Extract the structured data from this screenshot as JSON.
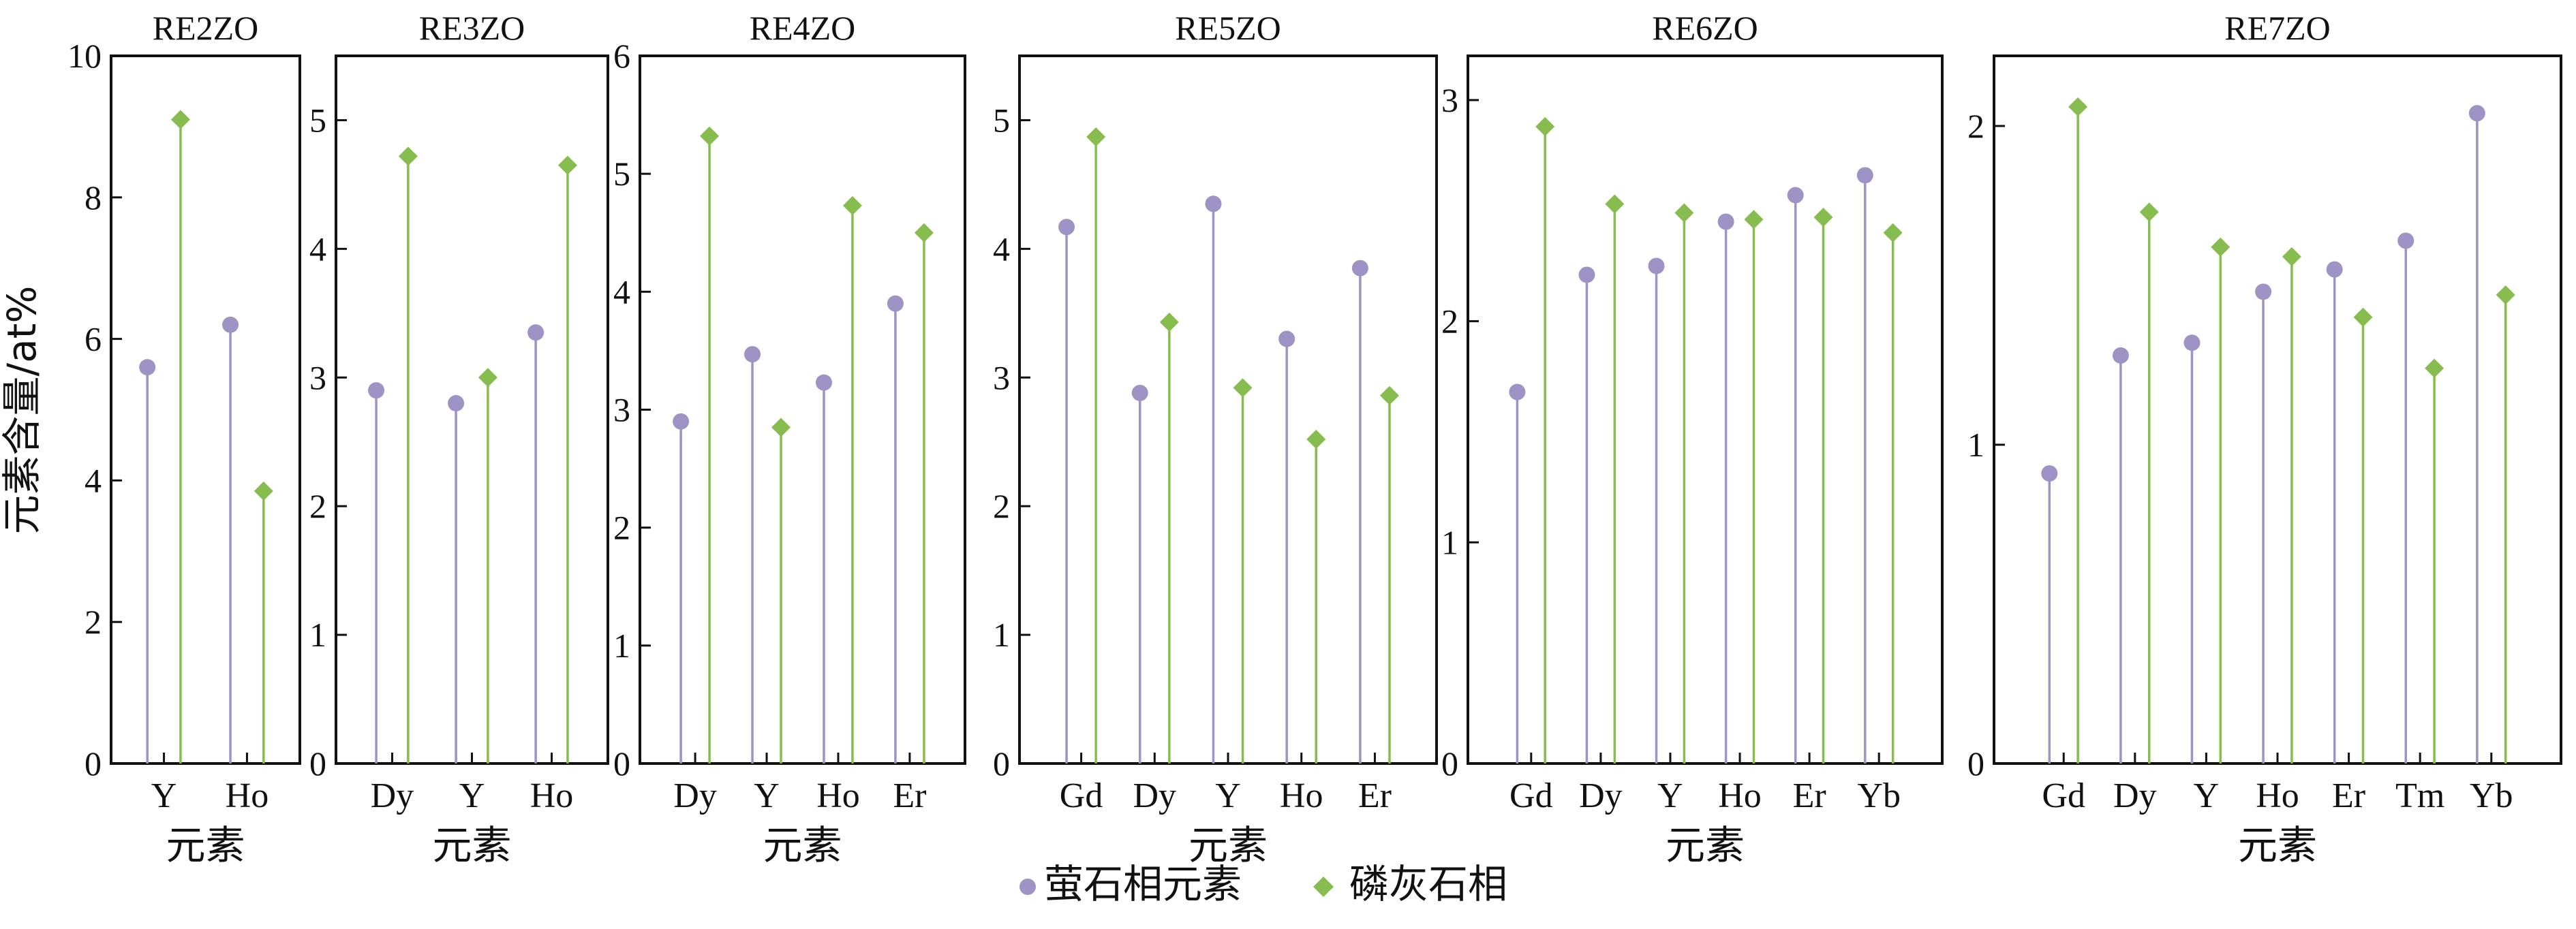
{
  "shared": {
    "ylabel": "元素含量/at%",
    "xlabel": "元素",
    "colors": {
      "fluorite": "#9d93c4",
      "apatite": "#86bd4e",
      "axis": "#111111"
    },
    "legend": [
      {
        "name": "萤石相元素",
        "key": "fluorite",
        "marker": "circle"
      },
      {
        "name": "磷灰石相",
        "key": "apatite",
        "marker": "diamond"
      }
    ]
  },
  "chart_data": [
    {
      "type": "stem",
      "title": "RE2ZO",
      "xlabel": "元素",
      "ylabel": "元素含量/at%",
      "categories": [
        "Y",
        "Ho"
      ],
      "ylim": [
        0,
        10
      ],
      "yticks": [
        0,
        2,
        4,
        6,
        8,
        10
      ],
      "series": [
        {
          "name": "萤石相元素",
          "values": [
            5.6,
            6.2
          ]
        },
        {
          "name": "磷灰石相",
          "values": [
            9.1,
            3.85
          ]
        }
      ]
    },
    {
      "type": "stem",
      "title": "RE3ZO",
      "xlabel": "元素",
      "categories": [
        "Dy",
        "Y",
        "Ho"
      ],
      "ylim": [
        0,
        5.5
      ],
      "yticks": [
        0,
        1,
        2,
        3,
        4,
        5
      ],
      "series": [
        {
          "name": "萤石相元素",
          "values": [
            2.9,
            2.8,
            3.35
          ]
        },
        {
          "name": "磷灰石相",
          "values": [
            4.72,
            3.0,
            4.65
          ]
        }
      ]
    },
    {
      "type": "stem",
      "title": "RE4ZO",
      "xlabel": "元素",
      "categories": [
        "Dy",
        "Y",
        "Ho",
        "Er"
      ],
      "ylim": [
        0,
        6
      ],
      "yticks": [
        0,
        1,
        2,
        3,
        4,
        5,
        6
      ],
      "series": [
        {
          "name": "萤石相元素",
          "values": [
            2.9,
            3.47,
            3.23,
            3.9
          ]
        },
        {
          "name": "磷灰石相",
          "values": [
            5.32,
            2.85,
            4.73,
            4.5
          ]
        }
      ]
    },
    {
      "type": "stem",
      "title": "RE5ZO",
      "xlabel": "元素",
      "categories": [
        "Gd",
        "Dy",
        "Y",
        "Ho",
        "Er"
      ],
      "ylim": [
        0,
        5.5
      ],
      "yticks": [
        0,
        1,
        2,
        3,
        4,
        5
      ],
      "series": [
        {
          "name": "萤石相元素",
          "values": [
            4.17,
            2.88,
            4.35,
            3.3,
            3.85
          ]
        },
        {
          "name": "磷灰石相",
          "values": [
            4.87,
            3.43,
            2.92,
            2.52,
            2.86
          ]
        }
      ]
    },
    {
      "type": "stem",
      "title": "RE6ZO",
      "xlabel": "元素",
      "categories": [
        "Gd",
        "Dy",
        "Y",
        "Ho",
        "Er",
        "Yb"
      ],
      "ylim": [
        0,
        3.2
      ],
      "yticks": [
        0,
        1,
        2,
        3
      ],
      "series": [
        {
          "name": "萤石相元素",
          "values": [
            1.68,
            2.21,
            2.25,
            2.45,
            2.57,
            2.66
          ]
        },
        {
          "name": "磷灰石相",
          "values": [
            2.88,
            2.53,
            2.49,
            2.46,
            2.47,
            2.4
          ]
        }
      ]
    },
    {
      "type": "stem",
      "title": "RE7ZO",
      "xlabel": "元素",
      "categories": [
        "Gd",
        "Dy",
        "Y",
        "Ho",
        "Er",
        "Tm",
        "Yb"
      ],
      "ylim": [
        0,
        2.22
      ],
      "yticks": [
        0,
        1,
        2
      ],
      "series": [
        {
          "name": "萤石相元素",
          "values": [
            0.91,
            1.28,
            1.32,
            1.48,
            1.55,
            1.64,
            2.04
          ]
        },
        {
          "name": "磷灰石相",
          "values": [
            2.06,
            1.73,
            1.62,
            1.59,
            1.4,
            1.24,
            1.47
          ]
        }
      ]
    }
  ]
}
